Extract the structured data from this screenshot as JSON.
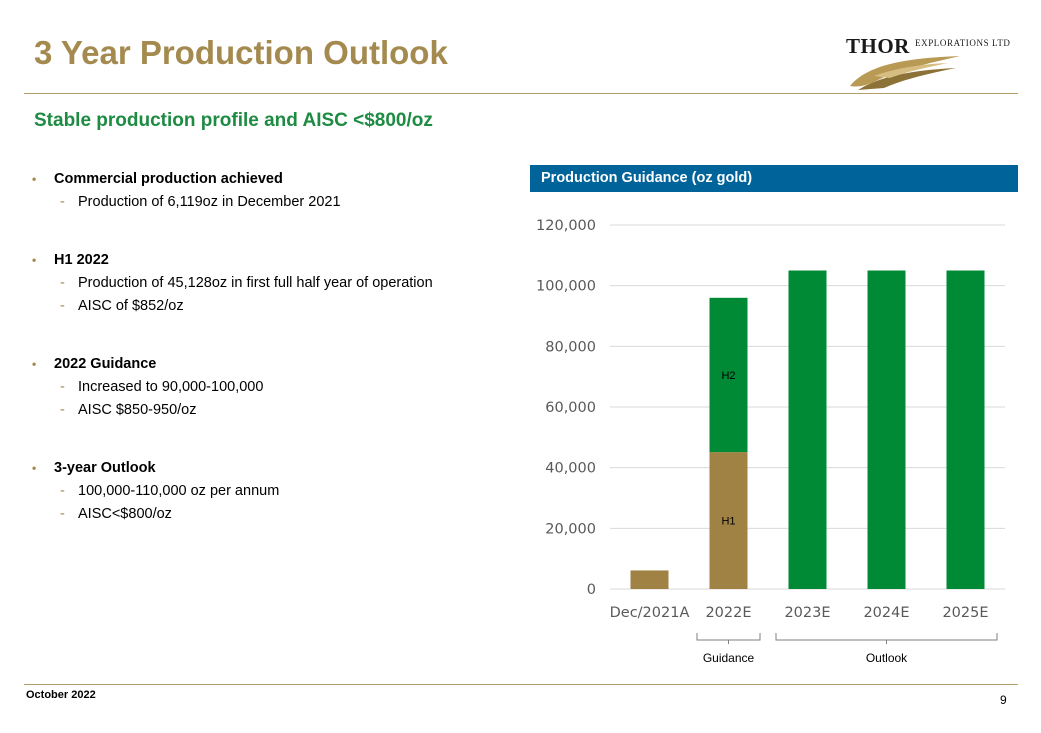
{
  "slide": {
    "title": "3 Year Production Outlook",
    "subtitle": "Stable production profile and AISC <$800/oz",
    "footer_date": "October 2022",
    "page_number": "9"
  },
  "logo": {
    "name": "THOR",
    "suffix": "EXPLORATIONS LTD",
    "icon": "wing-logo-icon"
  },
  "bullets": [
    {
      "heading": "Commercial production achieved",
      "items": [
        "Production of 6,119oz in December 2021"
      ]
    },
    {
      "heading": "H1 2022",
      "items": [
        "Production of 45,128oz in first full half year of operation",
        "AISC of $852/oz"
      ]
    },
    {
      "heading": "2022 Guidance",
      "items": [
        "Increased to 90,000-100,000",
        "AISC $850-950/oz"
      ]
    },
    {
      "heading": "3-year Outlook",
      "items": [
        "100,000-110,000 oz per annum",
        "AISC<$800/oz"
      ]
    }
  ],
  "chart_header": "Production Guidance (oz gold)",
  "chart_data": {
    "type": "bar",
    "stacked": true,
    "title": "Production Guidance (oz gold)",
    "categories": [
      "Dec/2021A",
      "2022E",
      "2023E",
      "2024E",
      "2025E"
    ],
    "segments": [
      {
        "category": "Dec/2021A",
        "value": 6119,
        "color": "#A08245",
        "label": ""
      },
      {
        "category": "2022E",
        "value": 45128,
        "color": "#A08245",
        "label": "H1"
      },
      {
        "category": "2022E",
        "value": 50872,
        "color": "#008A36",
        "label": "H2"
      },
      {
        "category": "2023E",
        "value": 105000,
        "color": "#008A36",
        "label": ""
      },
      {
        "category": "2024E",
        "value": 105000,
        "color": "#008A36",
        "label": ""
      },
      {
        "category": "2025E",
        "value": 105000,
        "color": "#008A36",
        "label": ""
      }
    ],
    "ylim": [
      0,
      120000
    ],
    "yticks": [
      0,
      20000,
      40000,
      60000,
      80000,
      100000,
      120000
    ],
    "grid": true,
    "groups": [
      {
        "label": "Guidance",
        "from": "2022E",
        "to": "2022E"
      },
      {
        "label": "Outlook",
        "from": "2023E",
        "to": "2025E"
      }
    ],
    "colors": {
      "gold": "#A08245",
      "green": "#008A36",
      "grid": "#D9D9D9",
      "axis_text": "#595959"
    }
  }
}
